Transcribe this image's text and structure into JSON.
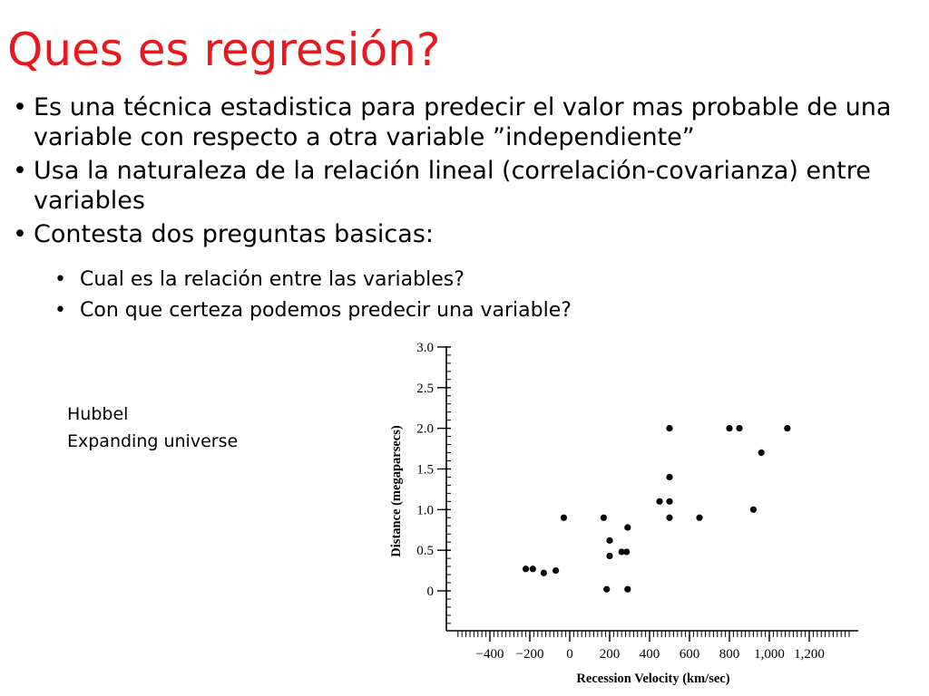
{
  "title": "Ques es regresión?",
  "bullets": [
    "Es una técnica estadistica para predecir el valor mas probable de una variable con respecto a otra variable ”independiente”",
    "Usa la naturaleza de la relación lineal (correlación-covarianza) entre variables",
    "Contesta dos preguntas basicas:"
  ],
  "sub_bullets": [
    "Cual es la relación entre las variables?",
    "Con que certeza podemos predecir una variable?"
  ],
  "note": {
    "line1": "Hubbel",
    "line2": "Expanding universe"
  },
  "chart_data": {
    "type": "scatter",
    "xlabel": "Recession Velocity (km/sec)",
    "ylabel": "Distance (megaparsecs)",
    "xlim": [
      -600,
      1400
    ],
    "ylim": [
      -0.5,
      3.0
    ],
    "x_ticks": [
      -400,
      -200,
      0,
      200,
      400,
      600,
      800,
      1000,
      1200
    ],
    "x_tick_labels": [
      "−400",
      "−200",
      "0",
      "200",
      "400",
      "600",
      "800",
      "1,000",
      "1,200"
    ],
    "y_ticks": [
      0,
      0.5,
      1.0,
      1.5,
      2.0,
      2.5,
      3.0
    ],
    "y_tick_labels": [
      "0",
      "0.5",
      "1.0",
      "1.5",
      "2.0",
      "2.5",
      "3.0"
    ],
    "points": [
      {
        "x": -220,
        "y": 0.27
      },
      {
        "x": -185,
        "y": 0.27
      },
      {
        "x": -130,
        "y": 0.22
      },
      {
        "x": -70,
        "y": 0.25
      },
      {
        "x": -30,
        "y": 0.9
      },
      {
        "x": 170,
        "y": 0.9
      },
      {
        "x": 185,
        "y": 0.02
      },
      {
        "x": 200,
        "y": 0.62
      },
      {
        "x": 200,
        "y": 0.43
      },
      {
        "x": 260,
        "y": 0.48
      },
      {
        "x": 285,
        "y": 0.48
      },
      {
        "x": 290,
        "y": 0.78
      },
      {
        "x": 290,
        "y": 0.02
      },
      {
        "x": 450,
        "y": 1.1
      },
      {
        "x": 500,
        "y": 1.1
      },
      {
        "x": 500,
        "y": 2.0
      },
      {
        "x": 500,
        "y": 1.4
      },
      {
        "x": 500,
        "y": 0.9
      },
      {
        "x": 650,
        "y": 0.9
      },
      {
        "x": 800,
        "y": 2.0
      },
      {
        "x": 850,
        "y": 2.0
      },
      {
        "x": 920,
        "y": 1.0
      },
      {
        "x": 960,
        "y": 1.7
      },
      {
        "x": 1090,
        "y": 2.0
      }
    ]
  }
}
